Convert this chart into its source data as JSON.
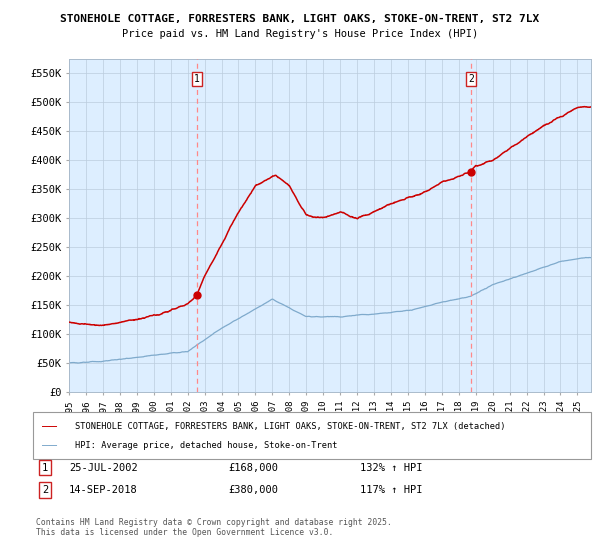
{
  "title1": "STONEHOLE COTTAGE, FORRESTERS BANK, LIGHT OAKS, STOKE-ON-TRENT, ST2 7LX",
  "title2": "Price paid vs. HM Land Registry's House Price Index (HPI)",
  "ylabel_ticks": [
    "£0",
    "£50K",
    "£100K",
    "£150K",
    "£200K",
    "£250K",
    "£300K",
    "£350K",
    "£400K",
    "£450K",
    "£500K",
    "£550K"
  ],
  "ytick_values": [
    0,
    50000,
    100000,
    150000,
    200000,
    250000,
    300000,
    350000,
    400000,
    450000,
    500000,
    550000
  ],
  "ylim": [
    0,
    575000
  ],
  "xlim_start": 1995.0,
  "xlim_end": 2025.8,
  "xtick_labels": [
    "1995",
    "1996",
    "1997",
    "1998",
    "1999",
    "2000",
    "2001",
    "2002",
    "2003",
    "2004",
    "2005",
    "2006",
    "2007",
    "2008",
    "2009",
    "2010",
    "2011",
    "2012",
    "2013",
    "2014",
    "2015",
    "2016",
    "2017",
    "2018",
    "2019",
    "2020",
    "2021",
    "2022",
    "2023",
    "2024",
    "2025"
  ],
  "red_line_color": "#cc0000",
  "blue_line_color": "#7faacc",
  "plot_bg_color": "#ddeeff",
  "marker1_date": 2002.56,
  "marker1_value": 168000,
  "marker2_date": 2018.71,
  "marker2_value": 380000,
  "marker1_label": "1",
  "marker2_label": "2",
  "legend_line1": "STONEHOLE COTTAGE, FORRESTERS BANK, LIGHT OAKS, STOKE-ON-TRENT, ST2 7LX (detached)",
  "legend_line2": "HPI: Average price, detached house, Stoke-on-Trent",
  "ann1_box": "1",
  "ann1_date": "25-JUL-2002",
  "ann1_price": "£168,000",
  "ann1_hpi": "132% ↑ HPI",
  "ann2_box": "2",
  "ann2_date": "14-SEP-2018",
  "ann2_price": "£380,000",
  "ann2_hpi": "117% ↑ HPI",
  "footnote": "Contains HM Land Registry data © Crown copyright and database right 2025.\nThis data is licensed under the Open Government Licence v3.0.",
  "background_color": "#ffffff",
  "grid_color": "#bbccdd",
  "vline_color": "#ff8888"
}
